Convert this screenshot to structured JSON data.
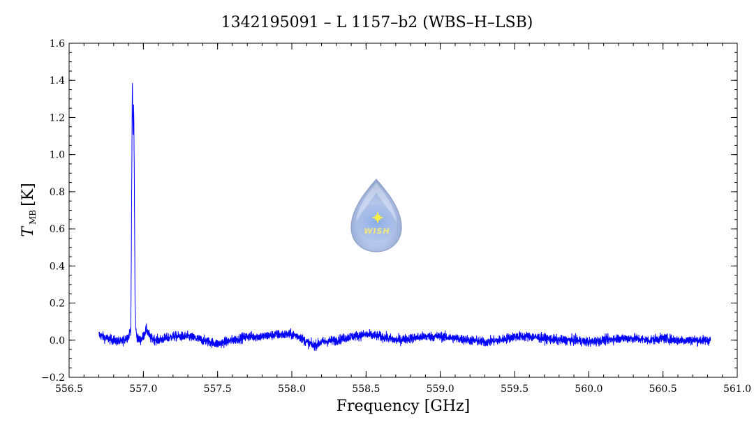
{
  "chart_data": {
    "type": "line",
    "title": "1342195091 – L 1157–b2 (WBS–H–LSB)",
    "xlabel": "Frequency [GHz]",
    "ylabel": {
      "symbol": "T",
      "subscript": "MB",
      "unit": "[K]"
    },
    "xlim": [
      556.5,
      561.0
    ],
    "ylim": [
      -0.2,
      1.6
    ],
    "x_ticks": [
      556.5,
      557.0,
      557.5,
      558.0,
      558.5,
      559.0,
      559.5,
      560.0,
      560.5,
      561.0
    ],
    "x_tick_labels": [
      "556.5",
      "557.0",
      "557.5",
      "558.0",
      "558.5",
      "559.0",
      "559.5",
      "560.0",
      "560.5",
      "561.0"
    ],
    "y_ticks": [
      -0.2,
      0.0,
      0.2,
      0.4,
      0.6,
      0.8,
      1.0,
      1.2,
      1.4,
      1.6
    ],
    "y_tick_labels": [
      "−0.2",
      "0.0",
      "0.2",
      "0.4",
      "0.6",
      "0.8",
      "1.0",
      "1.2",
      "1.4",
      "1.6"
    ],
    "grid": false,
    "series": [
      {
        "color": "#0000ff",
        "x_range": [
          556.7,
          560.82
        ],
        "noise_rms": 0.018,
        "points": [
          [
            556.7,
            0.03
          ],
          [
            556.75,
            0.01
          ],
          [
            556.8,
            0.0
          ],
          [
            556.85,
            -0.01
          ],
          [
            556.88,
            0.01
          ],
          [
            556.9,
            0.02
          ],
          [
            556.915,
            0.06
          ],
          [
            556.92,
            0.55
          ],
          [
            556.923,
            1.05
          ],
          [
            556.926,
            1.37
          ],
          [
            556.929,
            1.18
          ],
          [
            556.932,
            1.12
          ],
          [
            556.935,
            1.27
          ],
          [
            556.938,
            1.02
          ],
          [
            556.941,
            0.62
          ],
          [
            556.944,
            0.2
          ],
          [
            556.95,
            0.05
          ],
          [
            556.96,
            0.01
          ],
          [
            556.98,
            0.0
          ],
          [
            557.0,
            0.02
          ],
          [
            557.02,
            0.06
          ],
          [
            557.05,
            0.01
          ],
          [
            557.1,
            0.0
          ],
          [
            557.2,
            0.02
          ],
          [
            557.3,
            0.02
          ],
          [
            557.4,
            0.0
          ],
          [
            557.5,
            -0.02
          ],
          [
            557.6,
            0.0
          ],
          [
            557.7,
            0.02
          ],
          [
            557.8,
            0.02
          ],
          [
            557.9,
            0.03
          ],
          [
            558.0,
            0.03
          ],
          [
            558.05,
            0.02
          ],
          [
            558.1,
            -0.01
          ],
          [
            558.15,
            -0.03
          ],
          [
            558.2,
            -0.01
          ],
          [
            558.3,
            0.0
          ],
          [
            558.4,
            0.02
          ],
          [
            558.5,
            0.03
          ],
          [
            558.6,
            0.02
          ],
          [
            558.7,
            0.0
          ],
          [
            558.8,
            0.01
          ],
          [
            558.9,
            0.02
          ],
          [
            559.0,
            0.02
          ],
          [
            559.1,
            0.01
          ],
          [
            559.2,
            0.0
          ],
          [
            559.3,
            -0.01
          ],
          [
            559.4,
            0.0
          ],
          [
            559.5,
            0.02
          ],
          [
            559.6,
            0.02
          ],
          [
            559.7,
            0.01
          ],
          [
            559.8,
            0.0
          ],
          [
            559.9,
            0.0
          ],
          [
            560.0,
            -0.01
          ],
          [
            560.1,
            0.0
          ],
          [
            560.2,
            0.01
          ],
          [
            560.3,
            0.01
          ],
          [
            560.4,
            0.0
          ],
          [
            560.5,
            0.01
          ],
          [
            560.6,
            0.0
          ],
          [
            560.7,
            0.0
          ],
          [
            560.82,
            0.0
          ]
        ]
      }
    ]
  },
  "logo": {
    "text": "WISH",
    "colors": {
      "drop": "#a9bde6",
      "drop_edge": "#7f95c4",
      "star": "#ffee44"
    }
  }
}
